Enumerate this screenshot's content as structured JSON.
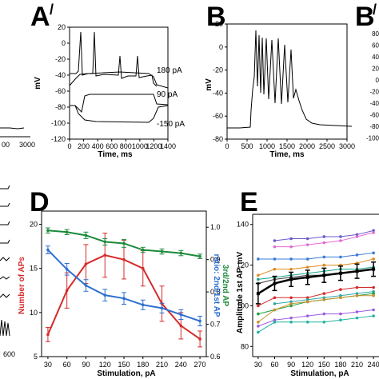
{
  "panels": {
    "A_prime": {
      "letter": "A",
      "prime": "/",
      "xlabel": "Time, ms",
      "ylabel": "mV",
      "xticks": [
        "0",
        "200",
        "400",
        "600",
        "800",
        "1000",
        "1200",
        "1400"
      ],
      "yticks": [
        "20",
        "0",
        "-20",
        "-40",
        "-60",
        "-80",
        "-100",
        "-120"
      ],
      "annotations": [
        "180 pA",
        "90 pA",
        "-150 pA"
      ]
    },
    "B": {
      "letter": "B",
      "xlabel": "Time, ms",
      "ylabel": "mV",
      "xticks": [
        "0",
        "500",
        "1000",
        "1500",
        "2000",
        "2500",
        "3000"
      ],
      "yticks": [
        "20",
        "0",
        "-20",
        "-40",
        "-60",
        "-80"
      ]
    },
    "B_prime": {
      "letter": "B",
      "prime": "/",
      "yticks": [
        "80",
        "60",
        "40",
        "20",
        "0",
        "-20",
        "-40",
        "-60",
        "-80",
        "-100"
      ]
    },
    "A_partial": {
      "xticks": [
        "00",
        "3000"
      ]
    },
    "C_partial": {
      "xticks": [
        "600"
      ]
    },
    "D": {
      "letter": "D",
      "xlabel": "Stimulation, pA",
      "ylabel_left": "Number of APs",
      "ylabel_right_1": "ratio: 2nd/1st AP",
      "ylabel_right_2": "3rd/2nd AP",
      "xticks": [
        "30",
        "60",
        "90",
        "120",
        "150",
        "180",
        "210",
        "240",
        "270"
      ],
      "yticks_left": [
        "20",
        "15",
        "10",
        "5"
      ],
      "yticks_right": [
        "1.0",
        "0.9",
        "0.8",
        "0.7",
        "0.6"
      ]
    },
    "E": {
      "letter": "E",
      "xlabel": "Stimulation, pA",
      "ylabel": "Amplitude 1st AP, mV",
      "xticks": [
        "30",
        "60",
        "90",
        "120",
        "150",
        "180",
        "210",
        "240"
      ],
      "yticks": [
        "140",
        "120",
        "100",
        "80"
      ]
    }
  },
  "chart_data": [
    {
      "type": "line",
      "panel": "D",
      "x": [
        30,
        60,
        90,
        120,
        150,
        180,
        210,
        240,
        270
      ],
      "xlim": [
        20,
        280
      ],
      "series": [
        {
          "axis": "left",
          "color": "#d62b2b",
          "ylim": [
            5,
            21.5
          ],
          "values": [
            7.5,
            12.5,
            15.5,
            16.5,
            16,
            15,
            11,
            8.5,
            7
          ],
          "errors": [
            0.8,
            2,
            2.2,
            2.5,
            2.2,
            2,
            2,
            1.5,
            0.9
          ]
        },
        {
          "axis": "right",
          "color": "#1a8a3a",
          "ylim": [
            0.6,
            1.05
          ],
          "values": [
            0.99,
            0.985,
            0.975,
            0.955,
            0.95,
            0.93,
            0.925,
            0.92,
            0.91
          ],
          "errors": [
            0.008,
            0.008,
            0.01,
            0.01,
            0.012,
            0.008,
            0.008,
            0.008,
            0.007
          ]
        },
        {
          "axis": "right",
          "color": "#2e6fd1",
          "ylim": [
            0.6,
            1.05
          ],
          "values": [
            0.93,
            0.87,
            0.82,
            0.79,
            0.78,
            0.76,
            0.75,
            0.73,
            0.71
          ],
          "errors": [
            0.012,
            0.018,
            0.018,
            0.018,
            0.018,
            0.015,
            0.015,
            0.015,
            0.015
          ]
        }
      ]
    },
    {
      "type": "line",
      "panel": "E",
      "x": [
        30,
        60,
        90,
        120,
        150,
        180,
        210,
        240
      ],
      "ylim": [
        75,
        145
      ],
      "series": [
        {
          "color": "#000000",
          "bold": true,
          "values": [
            106,
            111,
            113,
            114,
            115,
            116,
            117,
            118
          ],
          "errors": [
            5,
            3.5,
            3.5,
            3.5,
            3.5,
            3.5,
            3.5,
            3.5
          ]
        },
        {
          "color": "#6a5acd",
          "values": [
            null,
            132,
            133,
            133,
            134,
            134,
            135,
            137
          ]
        },
        {
          "color": "#e06bd6",
          "values": [
            null,
            129,
            129,
            130,
            131,
            132,
            134,
            136
          ]
        },
        {
          "color": "#3a7bd5",
          "values": [
            123,
            123,
            123,
            123,
            124,
            124,
            125,
            126
          ]
        },
        {
          "color": "#e08a1f",
          "values": [
            115,
            118,
            118,
            119,
            120,
            120,
            121,
            123
          ]
        },
        {
          "color": "#1aa38c",
          "values": [
            113,
            114,
            115,
            116,
            117,
            118,
            118,
            119
          ]
        },
        {
          "color": "#3a3a3a",
          "values": [
            111,
            113,
            114,
            115,
            115,
            116,
            117,
            118
          ]
        },
        {
          "color": "#d62b2b",
          "values": [
            100,
            104,
            104,
            104,
            106,
            108,
            109,
            109
          ]
        },
        {
          "color": "#2fa8a8",
          "values": [
            null,
            101,
            102,
            103,
            104,
            105,
            106,
            107
          ]
        },
        {
          "color": "#1f9e3a",
          "values": [
            96,
            98,
            100,
            102,
            103,
            104,
            105,
            106
          ]
        },
        {
          "color": "#c98f2a",
          "values": [
            92,
            98,
            101,
            102,
            103,
            104,
            105,
            105
          ]
        },
        {
          "color": "#9b5de5",
          "values": [
            90,
            93,
            94,
            95,
            96,
            96,
            97,
            98
          ]
        },
        {
          "color": "#22b3a0",
          "values": [
            87,
            92,
            92,
            92,
            92,
            93,
            94,
            95
          ]
        }
      ]
    }
  ]
}
